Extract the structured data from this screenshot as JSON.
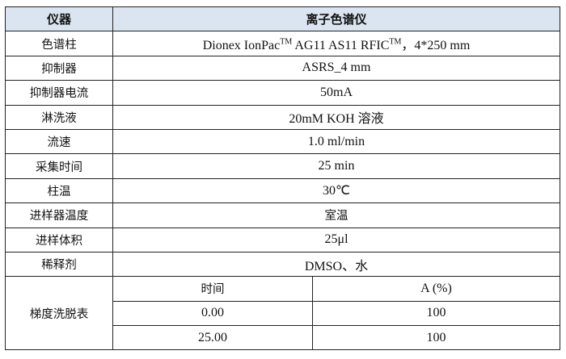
{
  "header": {
    "col1": "仪器",
    "col2": "离子色谱仪"
  },
  "rows": [
    {
      "label": "色谱柱",
      "value_pre": "Dionex IonPac",
      "tm1": "TM",
      "value_mid": " AG11 AS11 RFIC",
      "tm2": "TM",
      "value_post": "，4*250 mm"
    },
    {
      "label": "抑制器",
      "value": "ASRS_4 mm"
    },
    {
      "label": "抑制器电流",
      "value": "50mA"
    },
    {
      "label": "淋洗液",
      "value": "20mM KOH 溶液"
    },
    {
      "label": "流速",
      "value": "1.0 ml/min"
    },
    {
      "label": "采集时间",
      "value": "25 min"
    },
    {
      "label": "柱温",
      "value": "30℃"
    },
    {
      "label": "进样器温度",
      "value": "室温"
    },
    {
      "label": "进样体积",
      "value": "25μl"
    },
    {
      "label": "稀释剂",
      "value": "DMSO、水"
    }
  ],
  "gradient": {
    "label": "梯度洗脱表",
    "headers": [
      "时间",
      "A (%)"
    ],
    "rows": [
      [
        "0.00",
        "100"
      ],
      [
        "25.00",
        "100"
      ]
    ]
  }
}
